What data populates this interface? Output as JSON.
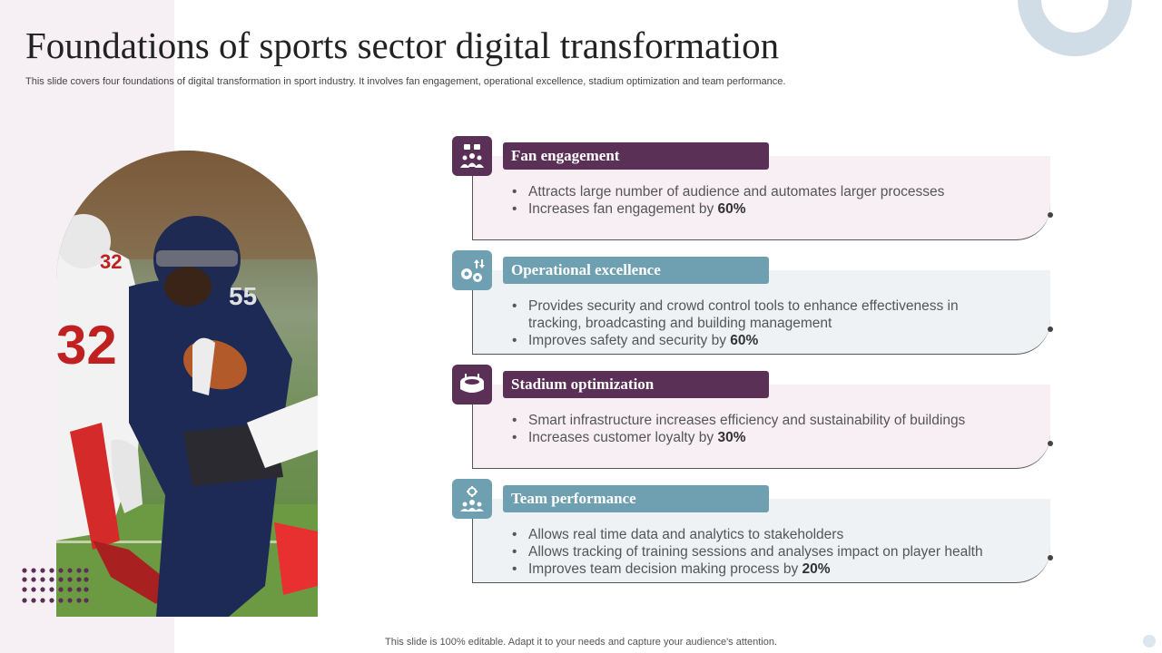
{
  "slide": {
    "title": "Foundations of sports sector digital transformation",
    "subtitle": "This slide covers four foundations of digital transformation in sport industry. It involves fan engagement, operational excellence, stadium optimization and team performance.",
    "footer": "This slide is 100% editable. Adapt it to your needs and capture your audience's attention."
  },
  "colors": {
    "purple": "#5b3057",
    "teal": "#6fa0b1",
    "pink_panel": "#f7eff4",
    "blue_panel": "#eef2f5"
  },
  "cards": [
    {
      "heading": "Fan engagement",
      "icon": "audience-icon",
      "bullets": [
        {
          "text": "Attracts large number of audience and automates larger processes",
          "value": ""
        },
        {
          "text": "Increases fan engagement by ",
          "value": "60%"
        }
      ]
    },
    {
      "heading": "Operational excellence",
      "icon": "gears-icon",
      "bullets": [
        {
          "text": "Provides security and crowd control tools to enhance effectiveness in tracking, broadcasting and building management",
          "value": ""
        },
        {
          "text": "Improves  safety and security by ",
          "value": "60%"
        }
      ]
    },
    {
      "heading": "Stadium optimization",
      "icon": "stadium-icon",
      "bullets": [
        {
          "text": "Smart infrastructure  increases efficiency and sustainability of buildings",
          "value": ""
        },
        {
          "text": "Increases customer loyalty by ",
          "value": "30%"
        }
      ]
    },
    {
      "heading": "Team performance",
      "icon": "team-icon",
      "bullets": [
        {
          "text": "Allows real time data and analytics to stakeholders",
          "value": ""
        },
        {
          "text": "Allows tracking of training sessions and analyses impact on player health",
          "value": ""
        },
        {
          "text": "Improves team decision making process by ",
          "value": "20%"
        }
      ]
    }
  ]
}
